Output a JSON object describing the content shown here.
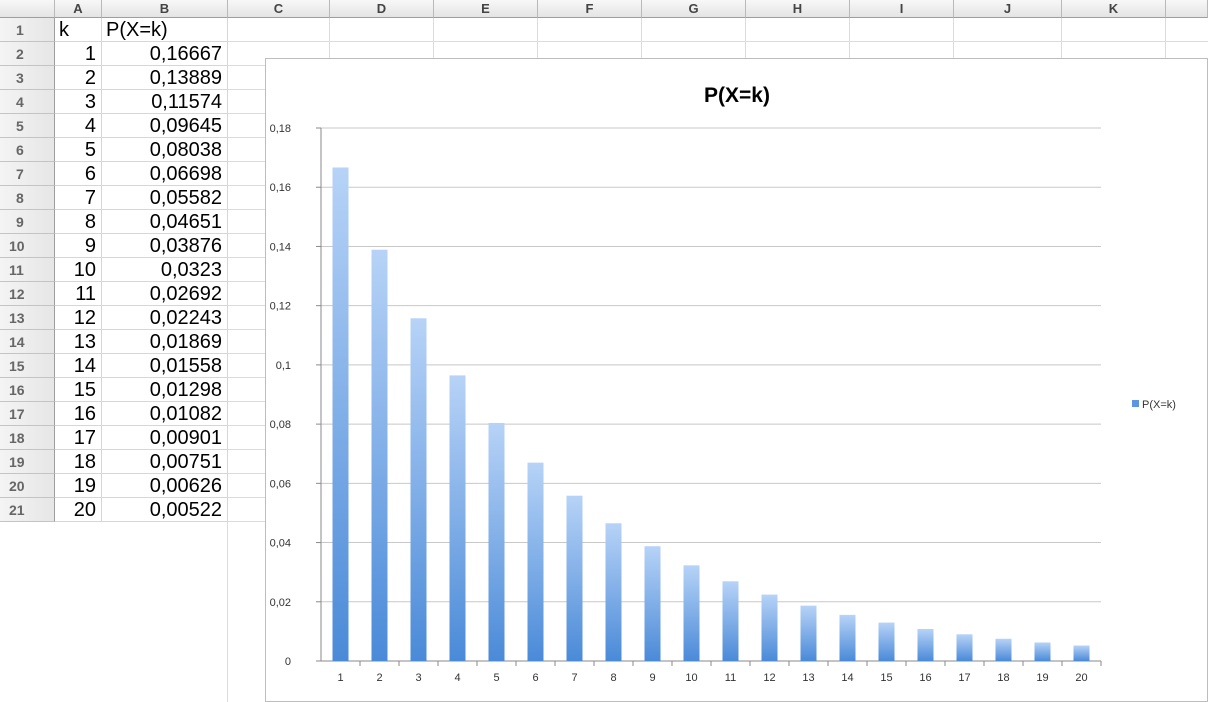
{
  "columns": [
    "A",
    "B",
    "C",
    "D",
    "E",
    "F",
    "G",
    "H",
    "I",
    "J",
    "K"
  ],
  "rows": [
    "1",
    "2",
    "3",
    "4",
    "5",
    "6",
    "7",
    "8",
    "9",
    "10",
    "11",
    "12",
    "13",
    "14",
    "15",
    "16",
    "17",
    "18",
    "19",
    "20",
    "21"
  ],
  "header_row": {
    "a": "k",
    "b": "P(X=k)"
  },
  "data_rows": [
    {
      "k": "1",
      "p": "0,16667"
    },
    {
      "k": "2",
      "p": "0,13889"
    },
    {
      "k": "3",
      "p": "0,11574"
    },
    {
      "k": "4",
      "p": "0,09645"
    },
    {
      "k": "5",
      "p": "0,08038"
    },
    {
      "k": "6",
      "p": "0,06698"
    },
    {
      "k": "7",
      "p": "0,05582"
    },
    {
      "k": "8",
      "p": "0,04651"
    },
    {
      "k": "9",
      "p": "0,03876"
    },
    {
      "k": "10",
      "p": "0,0323"
    },
    {
      "k": "11",
      "p": "0,02692"
    },
    {
      "k": "12",
      "p": "0,02243"
    },
    {
      "k": "13",
      "p": "0,01869"
    },
    {
      "k": "14",
      "p": "0,01558"
    },
    {
      "k": "15",
      "p": "0,01298"
    },
    {
      "k": "16",
      "p": "0,01082"
    },
    {
      "k": "17",
      "p": "0,00901"
    },
    {
      "k": "18",
      "p": "0,00751"
    },
    {
      "k": "19",
      "p": "0,00626"
    },
    {
      "k": "20",
      "p": "0,00522"
    }
  ],
  "chart_data": {
    "type": "bar",
    "title": "P(X=k)",
    "categories": [
      "1",
      "2",
      "3",
      "4",
      "5",
      "6",
      "7",
      "8",
      "9",
      "10",
      "11",
      "12",
      "13",
      "14",
      "15",
      "16",
      "17",
      "18",
      "19",
      "20"
    ],
    "series": [
      {
        "name": "P(X=k)",
        "values": [
          0.16667,
          0.13889,
          0.11574,
          0.09645,
          0.08038,
          0.06698,
          0.05582,
          0.04651,
          0.03876,
          0.0323,
          0.02692,
          0.02243,
          0.01869,
          0.01558,
          0.01298,
          0.01082,
          0.00901,
          0.00751,
          0.00626,
          0.00522
        ]
      }
    ],
    "yticks": [
      "0",
      "0,02",
      "0,04",
      "0,06",
      "0,08",
      "0,1",
      "0,12",
      "0,14",
      "0,16",
      "0,18"
    ],
    "ylim": [
      0,
      0.18
    ],
    "grid": true,
    "legend": "right",
    "colors": {
      "bar_top": "#b7d3f7",
      "bar_bottom": "#4a8ad8",
      "legend": "#5b96df"
    }
  }
}
